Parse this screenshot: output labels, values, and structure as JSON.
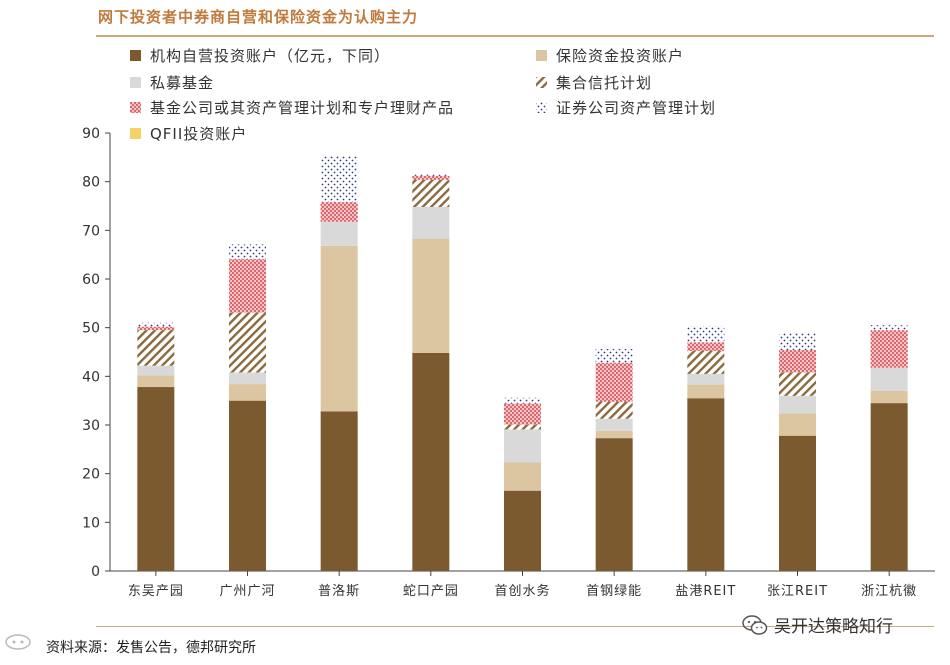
{
  "header": {
    "title": "网下投资者中券商自营和保险资金为认购主力"
  },
  "footer": {
    "source_prefix": "资料来源：",
    "source_text": "发售公告，德邦研究所",
    "watermark": "吴开达策略知行"
  },
  "colors": {
    "accent": "#c07a3c",
    "rule": "#c9a87a",
    "series": [
      "#7a5a2e",
      "#dcc6a2",
      "#d9d9d9",
      "#7a5a2e",
      "#d2202e",
      "#2b3a8a",
      "#f6d36a"
    ]
  },
  "chart_data": {
    "type": "bar",
    "stacked": true,
    "categories": [
      "东吴产园",
      "广州广河",
      "普洛斯",
      "蛇口产园",
      "首创水务",
      "首钢绿能",
      "盐港REIT",
      "张江REIT",
      "浙江杭徽"
    ],
    "series": [
      {
        "name": "机构自营投资账户（亿元，下同）",
        "pattern": "solid",
        "values": [
          37.8,
          35.0,
          32.8,
          44.8,
          16.5,
          27.3,
          35.5,
          27.8,
          34.5
        ]
      },
      {
        "name": "保险资金投资账户",
        "pattern": "solid",
        "values": [
          2.4,
          3.4,
          34.0,
          23.5,
          5.8,
          1.5,
          2.8,
          4.6,
          2.5
        ]
      },
      {
        "name": "私募基金",
        "pattern": "solid",
        "values": [
          2.0,
          2.4,
          5.0,
          6.5,
          6.8,
          2.5,
          2.2,
          3.6,
          4.8
        ]
      },
      {
        "name": "集合信托计划",
        "pattern": "diagonal",
        "values": [
          7.3,
          12.3,
          0.0,
          5.6,
          1.0,
          3.5,
          4.7,
          4.8,
          0.0
        ]
      },
      {
        "name": "基金公司或其资产管理计划和专户理财产品",
        "pattern": "red-dots",
        "values": [
          0.7,
          11.0,
          4.0,
          0.8,
          4.3,
          8.0,
          1.8,
          4.6,
          7.7
        ]
      },
      {
        "name": "证券公司资产管理计划",
        "pattern": "blue-dots",
        "values": [
          0.8,
          3.0,
          9.5,
          0.4,
          1.2,
          2.8,
          3.3,
          3.6,
          1.0
        ]
      },
      {
        "name": "QFII投资账户",
        "pattern": "solid",
        "values": [
          0,
          0,
          0,
          0,
          0,
          0,
          0,
          0,
          0
        ]
      }
    ],
    "ylim": [
      0,
      90
    ],
    "yticks": [
      "0",
      "10",
      "20",
      "30",
      "40",
      "50",
      "60",
      "70",
      "80",
      "90"
    ],
    "legend_position": "top",
    "grid": false
  }
}
